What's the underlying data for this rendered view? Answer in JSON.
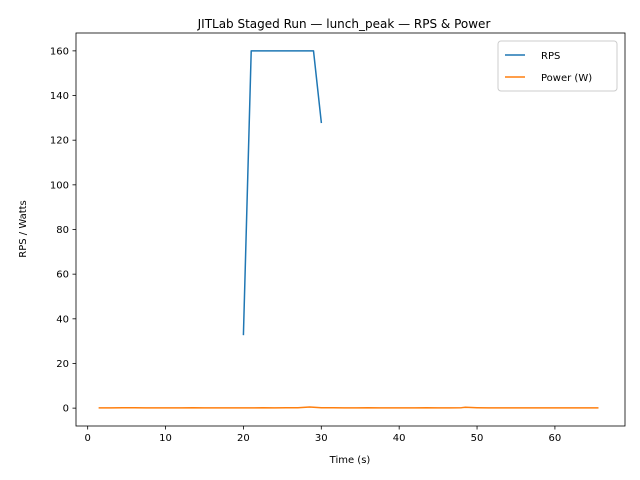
{
  "chart_data": {
    "type": "line",
    "title": "JITLab Staged Run — lunch_peak — RPS & Power",
    "xlabel": "Time (s)",
    "ylabel": "RPS / Watts",
    "xlim": [
      -1.5,
      69
    ],
    "ylim": [
      -8,
      168
    ],
    "xticks": [
      0,
      10,
      20,
      30,
      40,
      50,
      60
    ],
    "yticks": [
      0,
      20,
      40,
      60,
      80,
      100,
      120,
      140,
      160
    ],
    "legend_position": "upper right",
    "grid": false,
    "series": [
      {
        "name": "RPS",
        "color": "#1f77b4",
        "x": [
          20,
          21,
          22,
          23,
          24,
          25,
          26,
          27,
          28,
          29,
          30
        ],
        "y": [
          33,
          160,
          160,
          160,
          160,
          160,
          160,
          160,
          160,
          160,
          128
        ]
      },
      {
        "name": "Power (W)",
        "color": "#ff7f0e",
        "x": [
          1.5,
          3,
          4.5,
          6,
          7.5,
          9,
          10.5,
          12,
          13.5,
          15,
          16.5,
          18,
          19.5,
          21,
          22.5,
          24,
          25.5,
          27,
          28.5,
          30,
          31.5,
          33,
          34.5,
          36,
          37.5,
          39,
          40.5,
          42,
          43.5,
          45,
          46.5,
          48,
          48.5,
          50,
          51.5,
          53,
          54.5,
          56,
          57.5,
          59,
          60.5,
          62,
          63.5,
          65,
          65.5
        ],
        "y": [
          0.1,
          0.1,
          0.2,
          0.2,
          0.1,
          0.1,
          0.1,
          0.1,
          0.2,
          0.1,
          0.1,
          0.1,
          0.1,
          0.1,
          0.2,
          0.1,
          0.2,
          0.2,
          0.5,
          0.2,
          0.2,
          0.1,
          0.1,
          0.2,
          0.1,
          0.1,
          0.1,
          0.1,
          0.2,
          0.1,
          0.1,
          0.2,
          0.4,
          0.2,
          0.1,
          0.1,
          0.1,
          0.1,
          0.1,
          0.1,
          0.1,
          0.1,
          0.1,
          0.1,
          0.1
        ]
      }
    ]
  }
}
